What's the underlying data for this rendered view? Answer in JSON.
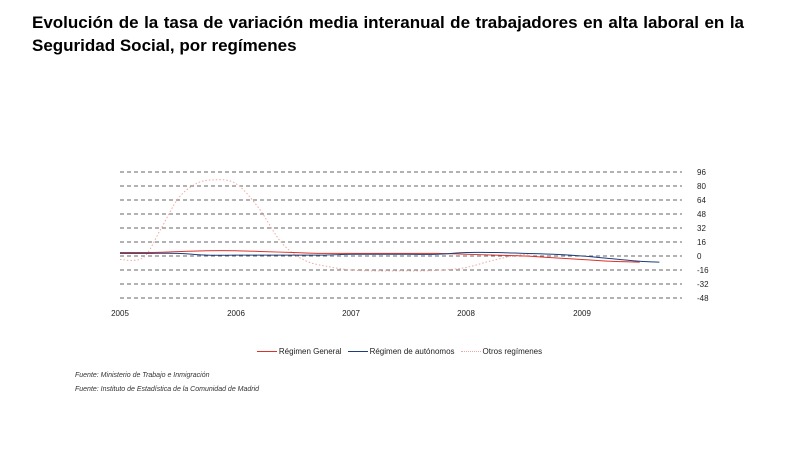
{
  "page": {
    "title": "Evolución de la tasa de variación media interanual de trabajadores en alta laboral en la Seguridad Social, por  regímenes",
    "sources": [
      "Fuente: Ministerio de Trabajo e Inmigración",
      "Fuente: Instituto de Estadística de la Comunidad de Madrid"
    ]
  },
  "chart_data": {
    "type": "line",
    "title": "",
    "xlabel": "",
    "ylabel": "",
    "x_tick_labels": [
      "2005",
      "2006",
      "2007",
      "2008",
      "2009"
    ],
    "y_ticks": [
      96,
      80,
      64,
      48,
      32,
      16,
      0,
      -16,
      -32,
      -48
    ],
    "ylim": [
      -48,
      96
    ],
    "xlim": [
      2005,
      2010
    ],
    "y_axis_position": "right",
    "grid": "horizontal dashed",
    "legend_position": "bottom",
    "colors": {
      "general": "#d9342b",
      "autonomos": "#1f3d7a",
      "otros": "#f0a8a0"
    },
    "series": [
      {
        "name": "Régimen General",
        "x": [
          2005.0,
          2005.25,
          2005.5,
          2005.75,
          2006.0,
          2006.25,
          2006.5,
          2006.75,
          2007.0,
          2007.25,
          2007.5,
          2007.75,
          2008.0,
          2008.25,
          2008.5,
          2008.75,
          2009.0,
          2009.25,
          2009.5
        ],
        "values": [
          4,
          4,
          5,
          6,
          6,
          5,
          4,
          3,
          3,
          3,
          3,
          3,
          2,
          1,
          0,
          -2,
          -4,
          -6,
          -7
        ]
      },
      {
        "name": "Régimen de autónomos",
        "x": [
          2005.0,
          2005.25,
          2005.5,
          2005.75,
          2006.0,
          2006.25,
          2006.5,
          2006.75,
          2007.0,
          2007.25,
          2007.5,
          2007.75,
          2008.0,
          2008.25,
          2008.5,
          2008.75,
          2009.0,
          2009.25,
          2009.5,
          2009.67
        ],
        "values": [
          3,
          3,
          3,
          1,
          1,
          1,
          1,
          1,
          2,
          2,
          2,
          2,
          4,
          4,
          3,
          2,
          0,
          -3,
          -6,
          -7
        ]
      },
      {
        "name": "Otros regímenes",
        "x": [
          2005.0,
          2005.2,
          2005.35,
          2005.5,
          2005.65,
          2005.8,
          2006.0,
          2006.2,
          2006.4,
          2006.6,
          2006.8,
          2007.0,
          2007.2,
          2007.4,
          2007.6,
          2007.8,
          2008.0,
          2008.2,
          2008.4,
          2008.6
        ],
        "values": [
          -4,
          -2,
          30,
          65,
          82,
          87,
          83,
          55,
          15,
          -5,
          -12,
          -16,
          -17,
          -17,
          -17,
          -16,
          -13,
          -6,
          0,
          3
        ]
      }
    ]
  }
}
